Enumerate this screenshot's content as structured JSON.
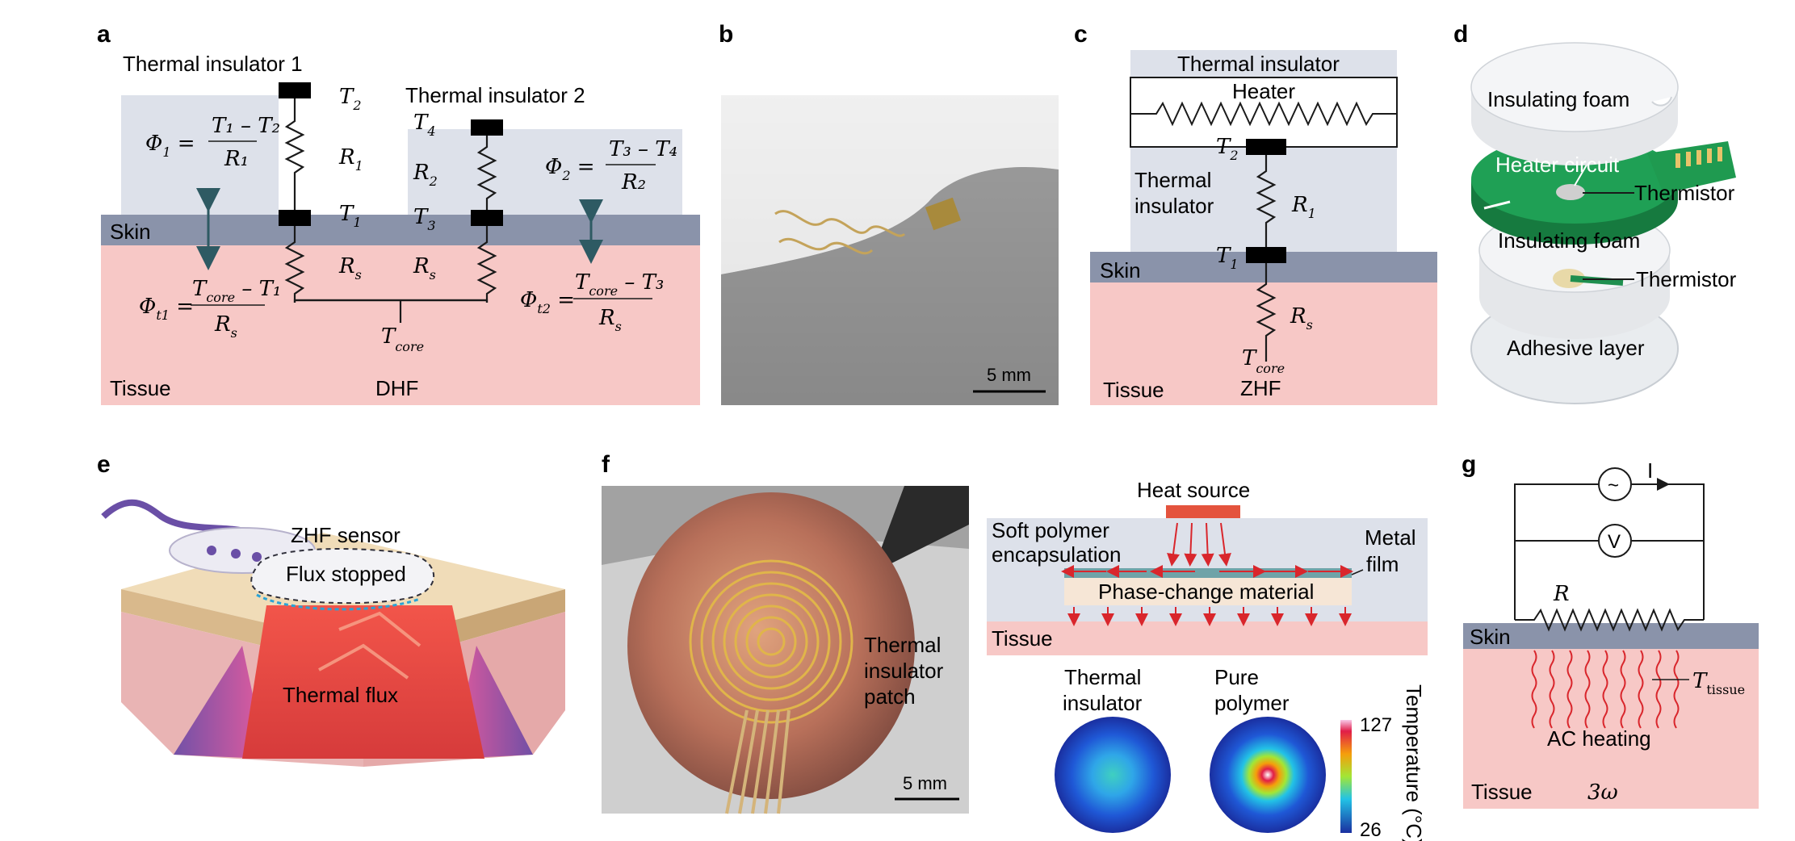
{
  "panels": {
    "a": {
      "letter": "a",
      "insulator1": "Thermal insulator 1",
      "insulator2": "Thermal insulator 2",
      "skin": "Skin",
      "tissue": "Tissue",
      "method": "DHF",
      "nodes": {
        "T2": "T",
        "T2s": "2",
        "R1": "R",
        "R1s": "1",
        "T1": "T",
        "T1s": "1",
        "T4": "T",
        "T4s": "4",
        "R2": "R",
        "R2s": "2",
        "T3": "T",
        "T3s": "3",
        "Rs_left": "R",
        "Rs_left_s": "s",
        "Rs_right": "R",
        "Rs_right_s": "s",
        "Tcore": "T",
        "Tcore_s": "core"
      },
      "eq1": {
        "lhs": "Φ",
        "lhs_sub": "1",
        "num": "T₁ – T₂",
        "den": "R₁"
      },
      "eq2": {
        "lhs": "Φ",
        "lhs_sub": "2",
        "num": "T₃ – T₄",
        "den": "R₂"
      },
      "eqt1": {
        "lhs": "Φ",
        "lhs_sub": "t1",
        "num_T": "T",
        "num_sub": "core",
        "num_rest": " – T₁",
        "den": "R",
        "den_sub": "s"
      },
      "eqt2": {
        "lhs": "Φ",
        "lhs_sub": "t2",
        "num_T": "T",
        "num_sub": "core",
        "num_rest": " – T₃",
        "den": "R",
        "den_sub": "s"
      }
    },
    "b": {
      "letter": "b",
      "scale": "5 mm"
    },
    "c": {
      "letter": "c",
      "insulator_top": "Thermal insulator",
      "heater": "Heater",
      "insulator_mid_1": "Thermal",
      "insulator_mid_2": "insulator",
      "skin": "Skin",
      "tissue": "Tissue",
      "method": "ZHF",
      "nodes": {
        "T2": "T",
        "T2s": "2",
        "R1": "R",
        "R1s": "1",
        "T1": "T",
        "T1s": "1",
        "Rs": "R",
        "Rs_s": "s",
        "Tcore": "T",
        "Tcore_s": "core"
      }
    },
    "d": {
      "letter": "d",
      "layer1": "Insulating foam",
      "layer2": "Heater circuit",
      "layer3": "Insulating foam",
      "layer4": "Adhesive layer",
      "thermistor1": "Thermistor",
      "thermistor2": "Thermistor"
    },
    "e": {
      "letter": "e",
      "sensor": "ZHF sensor",
      "stopped": "Flux stopped",
      "flux": "Thermal flux"
    },
    "f": {
      "letter": "f",
      "patch_1": "Thermal",
      "patch_2": "insulator",
      "patch_3": "patch",
      "scale": "5 mm",
      "heat_source": "Heat source",
      "encaps_1": "Soft polymer",
      "encaps_2": "encapsulation",
      "metal_1": "Metal",
      "metal_2": "film",
      "pcm": "Phase-change material",
      "tissue": "Tissue",
      "map1_1": "Thermal",
      "map1_2": "insulator",
      "map2_1": "Pure",
      "map2_2": "polymer",
      "colorbar_max": "127",
      "colorbar_min": "26",
      "colorbar_title": "Temperature (°C)"
    },
    "g": {
      "letter": "g",
      "source": "~",
      "current": "I",
      "voltmeter": "V",
      "resistor": "R",
      "skin": "Skin",
      "tissue": "Tissue",
      "t_label": "T",
      "t_sub": "tissue",
      "heating": "AC heating",
      "method": "3ω"
    }
  },
  "colors": {
    "insulator": "#dde1ea",
    "skin": "#8a93aa",
    "tissue": "#f7c8c6",
    "sensor_block": "#000000",
    "wire": "#1a1a1a",
    "arrow": "#2e5a63",
    "heat_arrow": "#d9262c",
    "heat_source": "#e4533d",
    "pcm": "#f6e6d6",
    "metal_film": "#6fa3a8"
  }
}
